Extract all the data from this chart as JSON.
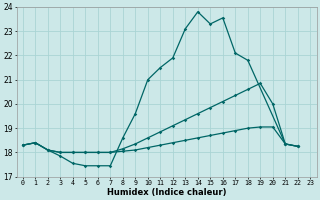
{
  "xlabel": "Humidex (Indice chaleur)",
  "xlim": [
    -0.5,
    23.5
  ],
  "ylim": [
    17,
    24
  ],
  "xticks": [
    0,
    1,
    2,
    3,
    4,
    5,
    6,
    7,
    8,
    9,
    10,
    11,
    12,
    13,
    14,
    15,
    16,
    17,
    18,
    19,
    20,
    21,
    22,
    23
  ],
  "yticks": [
    17,
    18,
    19,
    20,
    21,
    22,
    23,
    24
  ],
  "bg_color": "#cce8e8",
  "line_color": "#006666",
  "grid_color": "#aad4d4",
  "line1_x": [
    0,
    1,
    2,
    3,
    4,
    5,
    6,
    7,
    8,
    9,
    10,
    11,
    12,
    13,
    14,
    15,
    16,
    17,
    18,
    21,
    22
  ],
  "line1_y": [
    18.3,
    18.4,
    18.1,
    17.85,
    17.55,
    17.45,
    17.45,
    17.45,
    18.6,
    19.6,
    21.0,
    21.5,
    21.9,
    23.1,
    23.8,
    23.3,
    23.55,
    22.1,
    21.8,
    18.35,
    18.25
  ],
  "line2_x": [
    0,
    1,
    2,
    3,
    4,
    5,
    6,
    7,
    8,
    9,
    10,
    11,
    12,
    13,
    14,
    15,
    16,
    17,
    18,
    19,
    20,
    21,
    22
  ],
  "line2_y": [
    18.3,
    18.4,
    18.1,
    18.0,
    18.0,
    18.0,
    18.0,
    18.0,
    18.15,
    18.35,
    18.6,
    18.85,
    19.1,
    19.35,
    19.6,
    19.85,
    20.1,
    20.35,
    20.6,
    20.85,
    20.0,
    18.35,
    18.25
  ],
  "line3_x": [
    0,
    1,
    2,
    3,
    4,
    5,
    6,
    7,
    8,
    9,
    10,
    11,
    12,
    13,
    14,
    15,
    16,
    17,
    18,
    19,
    20,
    21,
    22
  ],
  "line3_y": [
    18.3,
    18.4,
    18.1,
    18.0,
    18.0,
    18.0,
    18.0,
    18.0,
    18.05,
    18.1,
    18.2,
    18.3,
    18.4,
    18.5,
    18.6,
    18.7,
    18.8,
    18.9,
    19.0,
    19.05,
    19.05,
    18.35,
    18.25
  ]
}
